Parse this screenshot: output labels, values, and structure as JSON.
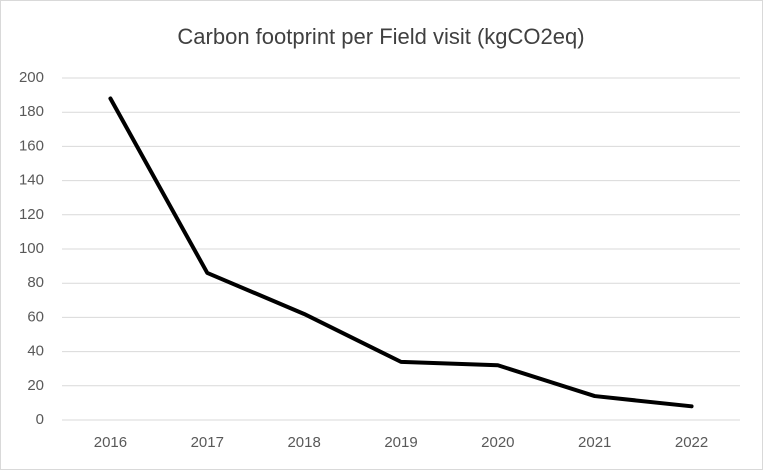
{
  "chart_data": {
    "type": "line",
    "title": "Carbon footprint per Field visit (kgCO2eq)",
    "categories": [
      "2016",
      "2017",
      "2018",
      "2019",
      "2020",
      "2021",
      "2022"
    ],
    "values": [
      188,
      86,
      62,
      34,
      32,
      14,
      8
    ],
    "color": "#000000",
    "ylim": [
      0,
      200
    ],
    "yticks": [
      0,
      20,
      40,
      60,
      80,
      100,
      120,
      140,
      160,
      180,
      200
    ],
    "grid": true
  }
}
